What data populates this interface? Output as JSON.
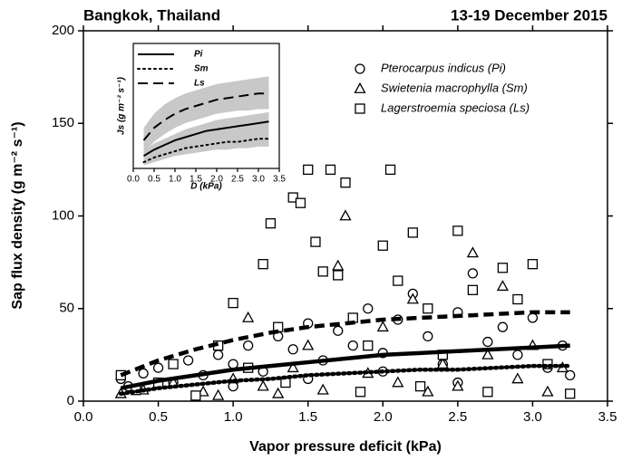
{
  "chart_data": [
    {
      "type": "scatter",
      "title": "Bangkok, Thailand",
      "subtitle": "13-19 December 2015",
      "x_label": "Vapor pressure deficit (kPa)",
      "y_label": "Sap flux density (g m⁻² s⁻¹)",
      "xlim": [
        0,
        3.5
      ],
      "ylim": [
        0,
        200
      ],
      "xticks": [
        {
          "value": 0,
          "label": "0.0"
        },
        0.5,
        {
          "value": 1,
          "label": "1.0"
        },
        1.5,
        {
          "value": 2,
          "label": "2.0"
        },
        2.5,
        {
          "value": 3,
          "label": "3.0"
        },
        3.5
      ],
      "yticks": [
        0,
        50,
        100,
        150,
        200
      ],
      "legend": "top-right",
      "series": [
        {
          "name": "Pterocarpus indicus (Pi)",
          "marker": "circle",
          "x": [
            0.25,
            0.3,
            0.4,
            0.5,
            0.6,
            0.7,
            0.8,
            0.9,
            1.0,
            1.1,
            1.2,
            1.3,
            1.4,
            1.5,
            1.6,
            1.7,
            1.8,
            1.9,
            2.0,
            2.1,
            2.2,
            2.3,
            2.4,
            2.5,
            2.6,
            2.7,
            2.8,
            2.9,
            3.0,
            3.1,
            3.2,
            3.25,
            1.0,
            1.5,
            2.0,
            2.5
          ],
          "values": [
            12,
            8,
            15,
            18,
            10,
            22,
            14,
            25,
            20,
            30,
            16,
            35,
            28,
            42,
            22,
            38,
            30,
            50,
            26,
            44,
            58,
            35,
            20,
            48,
            69,
            32,
            40,
            25,
            45,
            18,
            30,
            14,
            8,
            12,
            16,
            10
          ]
        },
        {
          "name": "Swietenia macrophylla (Sm)",
          "marker": "triangle",
          "x": [
            0.25,
            0.4,
            0.6,
            0.8,
            1.0,
            1.1,
            1.2,
            1.4,
            1.5,
            1.6,
            1.7,
            1.75,
            1.9,
            2.0,
            2.1,
            2.2,
            2.4,
            2.5,
            2.6,
            2.7,
            2.8,
            2.9,
            3.0,
            3.1,
            3.2,
            0.9,
            1.3,
            2.3
          ],
          "values": [
            4,
            6,
            10,
            5,
            12,
            45,
            8,
            18,
            30,
            6,
            73,
            100,
            15,
            40,
            10,
            55,
            20,
            8,
            80,
            25,
            62,
            12,
            30,
            5,
            18,
            3,
            4,
            5
          ]
        },
        {
          "name": "Lagerstroemia speciosa (Ls)",
          "marker": "square",
          "x": [
            0.25,
            0.35,
            0.5,
            0.6,
            0.75,
            0.9,
            1.0,
            1.1,
            1.2,
            1.25,
            1.3,
            1.4,
            1.45,
            1.5,
            1.55,
            1.6,
            1.65,
            1.7,
            1.75,
            1.8,
            1.9,
            2.0,
            2.05,
            2.1,
            2.2,
            2.3,
            2.4,
            2.5,
            2.6,
            2.7,
            2.8,
            2.9,
            3.0,
            3.1,
            3.25,
            1.35,
            1.85,
            2.25
          ],
          "values": [
            14,
            6,
            10,
            20,
            3,
            30,
            53,
            18,
            74,
            96,
            40,
            110,
            107,
            125,
            86,
            70,
            125,
            68,
            118,
            45,
            30,
            84,
            125,
            65,
            91,
            50,
            25,
            92,
            60,
            5,
            72,
            55,
            74,
            20,
            4,
            10,
            5,
            8
          ]
        }
      ],
      "fits": [
        {
          "style": "solid",
          "x": [
            0.25,
            0.5,
            0.75,
            1.0,
            1.25,
            1.5,
            1.75,
            2.0,
            2.25,
            2.5,
            2.75,
            3.0,
            3.25
          ],
          "values": [
            7,
            11,
            14,
            17,
            19,
            21,
            23,
            25,
            26,
            27,
            28,
            29,
            30
          ]
        },
        {
          "style": "dotted",
          "x": [
            0.25,
            0.5,
            0.75,
            1.0,
            1.25,
            1.5,
            1.75,
            2.0,
            2.25,
            2.5,
            2.75,
            3.0,
            3.25
          ],
          "values": [
            4,
            7,
            9,
            11,
            12,
            14,
            15,
            16,
            17,
            17,
            18,
            19,
            19
          ]
        },
        {
          "style": "dashed",
          "x": [
            0.25,
            0.5,
            0.75,
            1.0,
            1.25,
            1.5,
            1.75,
            2.0,
            2.25,
            2.5,
            2.75,
            3.0,
            3.25
          ],
          "values": [
            14,
            22,
            28,
            33,
            37,
            40,
            42,
            44,
            45,
            46,
            47,
            48,
            48
          ]
        }
      ]
    },
    {
      "type": "line",
      "x_label": "D (kPa)",
      "y_label": "Js (g m⁻² s⁻¹)",
      "xlim": [
        0,
        3.5
      ],
      "ylim": [
        0,
        80
      ],
      "xticks": [
        {
          "value": 0,
          "label": "0.0"
        },
        0.5,
        {
          "value": 1,
          "label": "1.0"
        },
        1.5,
        {
          "value": 2,
          "label": "2.0"
        },
        2.5,
        {
          "value": 3,
          "label": "3.0"
        },
        3.5
      ],
      "legend": "top-left",
      "series": [
        {
          "name": "Pi",
          "style": "solid",
          "x": [
            0.25,
            0.5,
            0.75,
            1.0,
            1.25,
            1.5,
            1.75,
            2.0,
            2.25,
            2.5,
            2.75,
            3.0,
            3.25
          ],
          "values": [
            8,
            12,
            15,
            18,
            20,
            22,
            24,
            25,
            26,
            27,
            28,
            29,
            30
          ],
          "lower": [
            5,
            8,
            11,
            13,
            15,
            17,
            18,
            19,
            20,
            21,
            22,
            22,
            23
          ],
          "upper": [
            11,
            16,
            19,
            22,
            25,
            27,
            29,
            31,
            32,
            33,
            34,
            35,
            36
          ]
        },
        {
          "name": "Sm",
          "style": "dotted",
          "x": [
            0.25,
            0.5,
            0.75,
            1.0,
            1.25,
            1.5,
            1.75,
            2.0,
            2.25,
            2.5,
            2.75,
            3.0,
            3.25
          ],
          "values": [
            4,
            7,
            9,
            11,
            13,
            14,
            15,
            16,
            17,
            17,
            18,
            19,
            19
          ],
          "lower": [
            2,
            4,
            6,
            8,
            9,
            10,
            11,
            12,
            12,
            13,
            13,
            14,
            14
          ],
          "upper": [
            6,
            10,
            12,
            14,
            16,
            18,
            19,
            20,
            21,
            22,
            23,
            24,
            24
          ]
        },
        {
          "name": "Ls",
          "style": "dashed",
          "x": [
            0.25,
            0.5,
            0.75,
            1.0,
            1.25,
            1.5,
            1.75,
            2.0,
            2.25,
            2.5,
            2.75,
            3.0,
            3.25
          ],
          "values": [
            18,
            26,
            31,
            35,
            38,
            40,
            42,
            44,
            45,
            46,
            47,
            48,
            48
          ],
          "lower": [
            10,
            17,
            22,
            26,
            29,
            31,
            33,
            35,
            36,
            37,
            37,
            38,
            38
          ],
          "upper": [
            26,
            35,
            41,
            45,
            48,
            50,
            52,
            54,
            55,
            56,
            57,
            58,
            59
          ]
        }
      ]
    }
  ]
}
